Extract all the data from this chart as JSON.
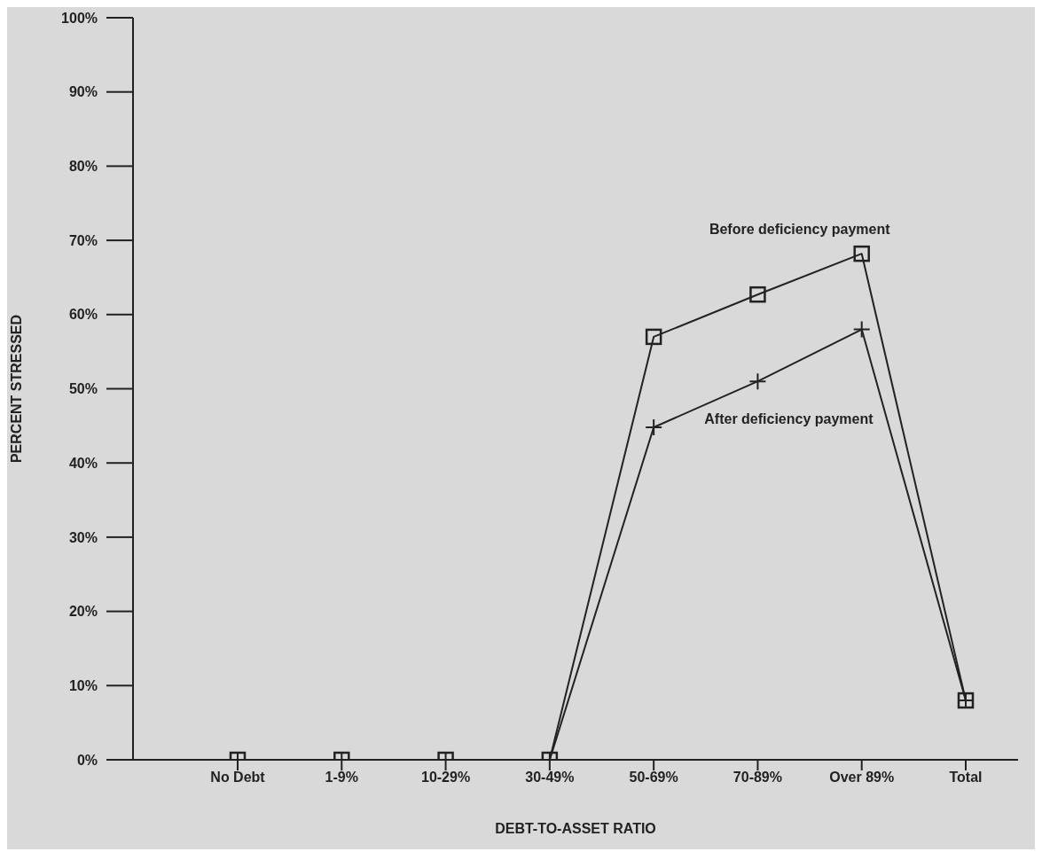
{
  "chart_data": {
    "type": "line",
    "xlabel": "DEBT-TO-ASSET RATIO",
    "ylabel": "PERCENT STRESSED",
    "categories": [
      "No Debt",
      "1-9%",
      "10-29%",
      "30-49%",
      "50-69%",
      "70-89%",
      "Over 89%",
      "Total"
    ],
    "series": [
      {
        "name": "Before deficiency payment",
        "color": "#222222",
        "marker": "square",
        "values": [
          0,
          0,
          0,
          0,
          57,
          62.7,
          68.2,
          8
        ]
      },
      {
        "name": "After deficiency payment",
        "color": "#222222",
        "marker": "cross",
        "values": [
          0,
          0,
          0,
          0,
          44.8,
          51,
          58,
          8
        ]
      }
    ],
    "ylim": [
      0,
      100
    ],
    "yticks": [
      {
        "value": 0,
        "label": "0%"
      },
      {
        "value": 10,
        "label": "10%"
      },
      {
        "value": 20,
        "label": "20%"
      },
      {
        "value": 30,
        "label": "30%"
      },
      {
        "value": 40,
        "label": "40%"
      },
      {
        "value": 50,
        "label": "50%"
      },
      {
        "value": 60,
        "label": "60%"
      },
      {
        "value": 70,
        "label": "70%"
      },
      {
        "value": 80,
        "label": "80%"
      },
      {
        "value": 90,
        "label": "90%"
      },
      {
        "value": 100,
        "label": "100%"
      }
    ],
    "grid": false,
    "legend": false,
    "line_style": "solid"
  }
}
